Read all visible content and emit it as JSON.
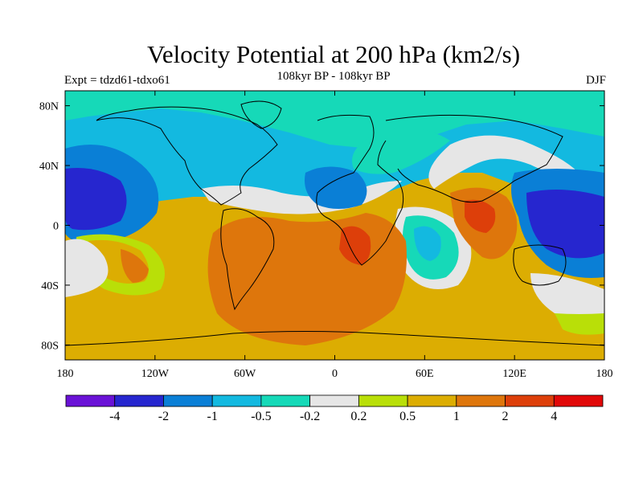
{
  "header": {
    "title": "Velocity Potential at 200 hPa (km2/s)",
    "subtitle": "108kyr BP - 108kyr BP",
    "left_label": "Expt = tdzd61-tdxo61",
    "right_label": "DJF"
  },
  "chart_data": {
    "type": "heatmap",
    "title": "Velocity Potential at 200 hPa (km2/s)",
    "xlabel": "",
    "ylabel": "",
    "projection": "cylindrical equidistant",
    "xlim": [
      180,
      540
    ],
    "ylim": [
      -90,
      90
    ],
    "x_ticks": [
      {
        "value": 180,
        "label": "180"
      },
      {
        "value": 240,
        "label": "120W"
      },
      {
        "value": 300,
        "label": "60W"
      },
      {
        "value": 360,
        "label": "0"
      },
      {
        "value": 420,
        "label": "60E"
      },
      {
        "value": 480,
        "label": "120E"
      },
      {
        "value": 540,
        "label": "180"
      }
    ],
    "y_ticks": [
      {
        "value": 80,
        "label": "80N"
      },
      {
        "value": 40,
        "label": "40N"
      },
      {
        "value": 0,
        "label": "0"
      },
      {
        "value": -40,
        "label": "40S"
      },
      {
        "value": -80,
        "label": "80S"
      }
    ],
    "colorbar": {
      "colors": [
        "#6a12d6",
        "#2626cf",
        "#0a7fd6",
        "#13b9e0",
        "#16d9b8",
        "#e6e6e6",
        "#b9df08",
        "#dcad02",
        "#de760c",
        "#dd3f0a",
        "#e10808"
      ],
      "labels": [
        "-4",
        "-2",
        "-1",
        "-0.5",
        "-0.2",
        "0.2",
        "0.5",
        "1",
        "2",
        "4"
      ]
    },
    "field_centers": [
      {
        "name": "North Pacific minimum",
        "lon": 195,
        "lat": 12,
        "value": -3
      },
      {
        "name": "West Pacific minimum",
        "lon": 525,
        "lat": 0,
        "value": -3
      },
      {
        "name": "South America maximum",
        "lon": 315,
        "lat": -25,
        "value": 2.5
      },
      {
        "name": "Southern Africa maximum",
        "lon": 380,
        "lat": -10,
        "value": 3
      },
      {
        "name": "Maritime Continent maximum",
        "lon": 460,
        "lat": 5,
        "value": 3
      },
      {
        "name": "South Pacific maximum",
        "lon": 225,
        "lat": -25,
        "value": 1.5
      }
    ],
    "grid": false,
    "legend": "bottom"
  }
}
